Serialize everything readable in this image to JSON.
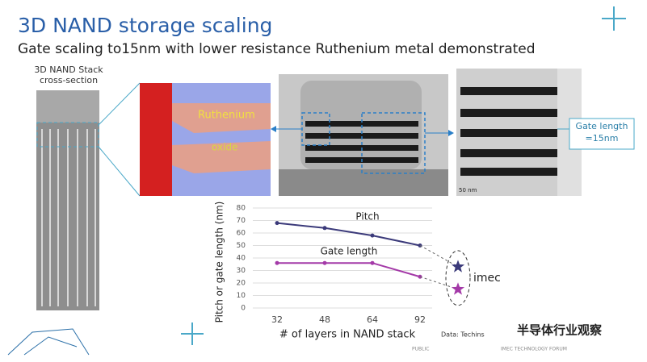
{
  "slide_title": "3D NAND storage scaling",
  "subtitle": "Gate scaling to15nm with lower resistance Ruthenium metal demonstrated",
  "stack_label": "3D NAND Stack cross-section",
  "image_labels": {
    "metal": "Ruthenium",
    "oxide": "oxide",
    "gate": "Gate length =15nm",
    "scale": "50 nm"
  },
  "footer": {
    "left": "PUBLIC",
    "right": "IMEC TECHNOLOGY FORUM",
    "watermark": "半导体行业观察"
  },
  "chart_data": {
    "type": "line",
    "categories": [
      "32",
      "48",
      "64",
      "92",
      null
    ],
    "series": [
      {
        "name": "Pitch",
        "color": "#3b3a7a",
        "values": [
          68,
          64,
          58,
          50,
          null
        ]
      },
      {
        "name": "Gate length",
        "color": "#a43aa8",
        "values": [
          36,
          36,
          36,
          25,
          null
        ]
      }
    ],
    "projection": {
      "label": "imec",
      "values": [
        33,
        15
      ]
    },
    "ylim": [
      0,
      80
    ],
    "yticks": [
      0,
      10,
      20,
      30,
      40,
      50,
      60,
      70,
      80
    ],
    "grid": true,
    "y_label": "Pitch or gate length (nm)",
    "x_label": "# of layers in NAND stack",
    "source": "Data: Techins"
  }
}
